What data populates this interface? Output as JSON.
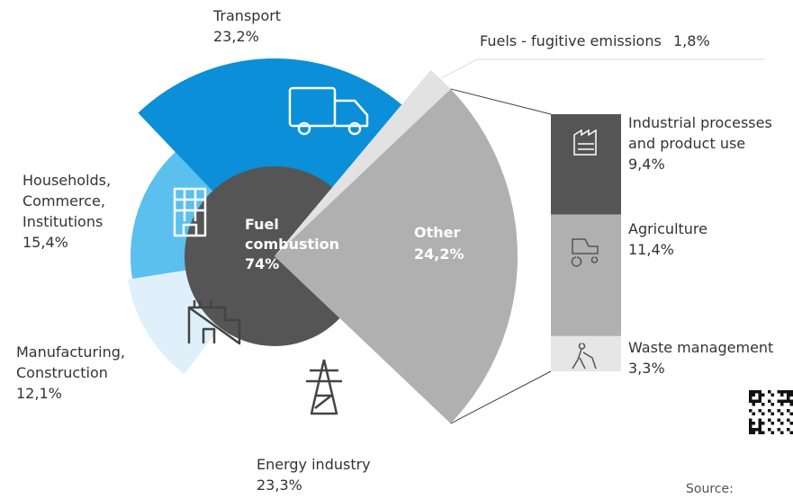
{
  "chart_data": {
    "type": "pie",
    "categories": [
      "Fuel\ncombustion",
      "Fuels - fugitive emissions",
      "Other"
    ],
    "values": [
      74,
      1.8,
      24.2
    ],
    "value_labels": [
      "74%",
      "1,8%",
      "24,2%"
    ],
    "colors": [
      "#555555",
      "#e2e2e2",
      "#b0b0b0"
    ],
    "breakdown": {
      "categories": [
        "Energy industry",
        "Manufacturing,\nConstruction",
        "Households,\nCommerce,\nInstitutions",
        "Transport"
      ],
      "values": [
        23.3,
        12.1,
        15.4,
        23.2
      ],
      "value_labels": [
        "23,3%",
        "12,1%",
        "15,4%",
        "23,2%"
      ],
      "colors": [
        "#ffffff",
        "#dff0fb",
        "#5bc0ee",
        "#0a8fd8"
      ]
    },
    "other_breakdown": {
      "categories": [
        "Industrial processes\nand product use",
        "Agriculture",
        "Waste management"
      ],
      "values": [
        9.4,
        11.4,
        3.3
      ],
      "value_labels": [
        "9,4%",
        "11,4%",
        "3,3%"
      ],
      "colors": [
        "#555555",
        "#b0b0b0",
        "#e6e6e6"
      ]
    }
  },
  "source": "Source:"
}
